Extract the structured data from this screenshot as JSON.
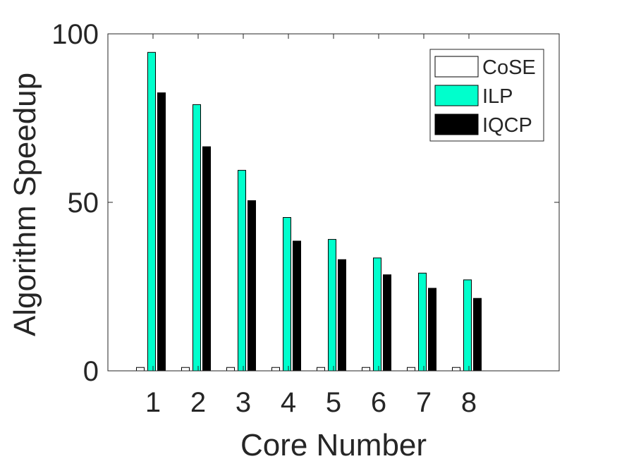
{
  "chart_data": {
    "type": "bar",
    "title": "",
    "xlabel": "Core Number",
    "ylabel": "Algorithm Speedup",
    "categories": [
      "1",
      "2",
      "3",
      "4",
      "5",
      "6",
      "7",
      "8"
    ],
    "xlim": [
      0,
      10
    ],
    "ylim": [
      0,
      100
    ],
    "yticks": [
      "0",
      "50",
      "100"
    ],
    "grid": false,
    "legend": {
      "position": "top-right"
    },
    "series": [
      {
        "name": "CoSE",
        "color": "#ffffff",
        "values": [
          1,
          1,
          1,
          1,
          1,
          1,
          1,
          1
        ]
      },
      {
        "name": "ILP",
        "color": "#00ffcc",
        "values": [
          94.5,
          79,
          59.5,
          45.5,
          39,
          33.5,
          29,
          27
        ]
      },
      {
        "name": "IQCP",
        "color": "#000000",
        "values": [
          82.5,
          66.5,
          50.5,
          38.5,
          33,
          28.5,
          24.5,
          21.5
        ]
      }
    ]
  }
}
